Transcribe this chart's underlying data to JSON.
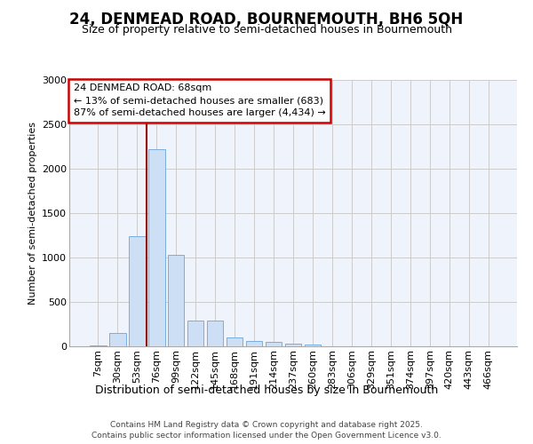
{
  "title": "24, DENMEAD ROAD, BOURNEMOUTH, BH6 5QH",
  "subtitle": "Size of property relative to semi-detached houses in Bournemouth",
  "xlabel": "Distribution of semi-detached houses by size in Bournemouth",
  "ylabel": "Number of semi-detached properties",
  "footer_line1": "Contains HM Land Registry data © Crown copyright and database right 2025.",
  "footer_line2": "Contains public sector information licensed under the Open Government Licence v3.0.",
  "bar_labels": [
    "7sqm",
    "30sqm",
    "53sqm",
    "76sqm",
    "99sqm",
    "122sqm",
    "145sqm",
    "168sqm",
    "191sqm",
    "214sqm",
    "237sqm",
    "260sqm",
    "283sqm",
    "306sqm",
    "329sqm",
    "351sqm",
    "374sqm",
    "397sqm",
    "420sqm",
    "443sqm",
    "466sqm"
  ],
  "bar_values": [
    15,
    155,
    1240,
    2220,
    1030,
    290,
    295,
    105,
    60,
    50,
    30,
    18,
    5,
    0,
    0,
    0,
    0,
    0,
    0,
    0,
    0
  ],
  "bar_color": "#ccdff5",
  "bar_edge_color": "#7aade0",
  "grid_color": "#cccccc",
  "background_color": "#ffffff",
  "plot_bg_color": "#eef3fc",
  "vline_x": 2.5,
  "vline_color": "#990000",
  "annotation_text": "24 DENMEAD ROAD: 68sqm\n← 13% of semi-detached houses are smaller (683)\n87% of semi-detached houses are larger (4,434) →",
  "annotation_box_facecolor": "#ffffff",
  "annotation_box_edgecolor": "#cc0000",
  "ylim": [
    0,
    3000
  ],
  "yticks": [
    0,
    500,
    1000,
    1500,
    2000,
    2500,
    3000
  ],
  "title_fontsize": 12,
  "subtitle_fontsize": 9,
  "ylabel_fontsize": 8,
  "xlabel_fontsize": 9,
  "tick_fontsize": 8,
  "footer_fontsize": 6.5
}
